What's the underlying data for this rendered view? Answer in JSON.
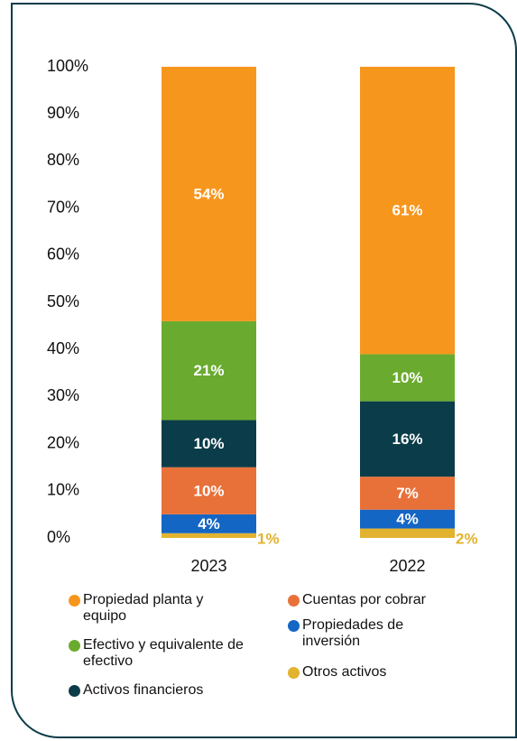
{
  "chart_data": {
    "type": "stacked_bar",
    "categories": [
      "2023",
      "2022"
    ],
    "series": [
      {
        "name": "Otros activos",
        "color": "#e2b32e",
        "values": [
          1,
          2
        ],
        "value_labels": [
          "1%",
          "2%"
        ]
      },
      {
        "name": "Propiedades de inversión",
        "color": "#1466c4",
        "values": [
          4,
          4
        ],
        "value_labels": [
          "4%",
          "4%"
        ]
      },
      {
        "name": "Cuentas por cobrar",
        "color": "#e8713a",
        "values": [
          10,
          7
        ],
        "value_labels": [
          "10%",
          "7%"
        ]
      },
      {
        "name": "Activos financieros",
        "color": "#0b3c49",
        "values": [
          10,
          16
        ],
        "value_labels": [
          "10%",
          "16%"
        ]
      },
      {
        "name": "Efectivo y equivalente de efectivo",
        "color": "#6aab2f",
        "values": [
          21,
          10
        ],
        "value_labels": [
          "21%",
          "10%"
        ]
      },
      {
        "name": "Propiedad planta y equipo",
        "color": "#f7961c",
        "values": [
          54,
          61
        ],
        "value_labels": [
          "54%",
          "61%"
        ]
      }
    ],
    "ylim": [
      0,
      100
    ],
    "yticks": [
      {
        "value": 0,
        "label": "0%"
      },
      {
        "value": 10,
        "label": "10%"
      },
      {
        "value": 20,
        "label": "20%"
      },
      {
        "value": 30,
        "label": "30%"
      },
      {
        "value": 40,
        "label": "40%"
      },
      {
        "value": 50,
        "label": "50%"
      },
      {
        "value": 60,
        "label": "60%"
      },
      {
        "value": 70,
        "label": "70%"
      },
      {
        "value": 80,
        "label": "80%"
      },
      {
        "value": 90,
        "label": "90%"
      },
      {
        "value": 100,
        "label": "100%"
      }
    ]
  }
}
